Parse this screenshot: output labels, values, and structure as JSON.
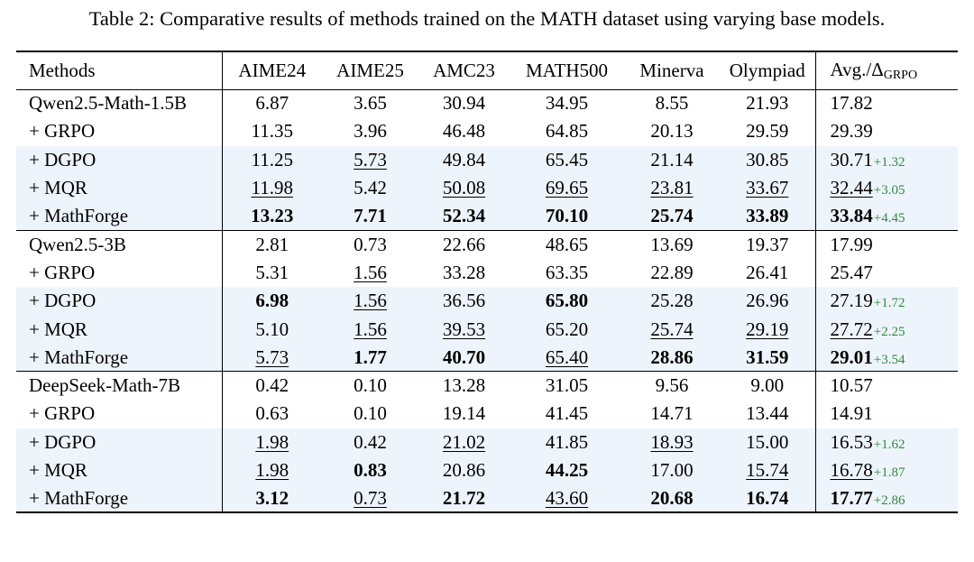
{
  "caption": "Table 2: Comparative results of methods trained on the MATH dataset using varying base models.",
  "header": {
    "methods": "Methods",
    "columns": [
      "AIME24",
      "AIME25",
      "AMC23",
      "MATH500",
      "Minerva",
      "Olympiad"
    ],
    "avg_prefix": "Avg./Δ",
    "avg_sub": "GRPO"
  },
  "colors": {
    "shade": "#eef4fb",
    "delta": "#2e8b3e"
  },
  "groups": [
    {
      "rows": [
        {
          "method": "Qwen2.5-Math-1.5B",
          "shaded": false,
          "values": [
            {
              "v": "6.87"
            },
            {
              "v": "3.65"
            },
            {
              "v": "30.94"
            },
            {
              "v": "34.95"
            },
            {
              "v": "8.55"
            },
            {
              "v": "21.93"
            }
          ],
          "avg": {
            "v": "17.82"
          },
          "delta": ""
        },
        {
          "method": "+ GRPO",
          "shaded": false,
          "values": [
            {
              "v": "11.35"
            },
            {
              "v": "3.96"
            },
            {
              "v": "46.48"
            },
            {
              "v": "64.85"
            },
            {
              "v": "20.13"
            },
            {
              "v": "29.59"
            }
          ],
          "avg": {
            "v": "29.39"
          },
          "delta": ""
        },
        {
          "method": "+ DGPO",
          "shaded": true,
          "values": [
            {
              "v": "11.25"
            },
            {
              "v": "5.73",
              "u": true
            },
            {
              "v": "49.84"
            },
            {
              "v": "65.45"
            },
            {
              "v": "21.14"
            },
            {
              "v": "30.85"
            }
          ],
          "avg": {
            "v": "30.71"
          },
          "delta": "+1.32"
        },
        {
          "method": "+ MQR",
          "shaded": true,
          "values": [
            {
              "v": "11.98",
              "u": true
            },
            {
              "v": "5.42"
            },
            {
              "v": "50.08",
              "u": true
            },
            {
              "v": "69.65",
              "u": true
            },
            {
              "v": "23.81",
              "u": true
            },
            {
              "v": "33.67",
              "u": true
            }
          ],
          "avg": {
            "v": "32.44",
            "u": true
          },
          "delta": "+3.05"
        },
        {
          "method": "+ MathForge",
          "shaded": true,
          "values": [
            {
              "v": "13.23",
              "b": true
            },
            {
              "v": "7.71",
              "b": true
            },
            {
              "v": "52.34",
              "b": true
            },
            {
              "v": "70.10",
              "b": true
            },
            {
              "v": "25.74",
              "b": true
            },
            {
              "v": "33.89",
              "b": true
            }
          ],
          "avg": {
            "v": "33.84",
            "b": true
          },
          "delta": "+4.45"
        }
      ]
    },
    {
      "rows": [
        {
          "method": "Qwen2.5-3B",
          "shaded": false,
          "values": [
            {
              "v": "2.81"
            },
            {
              "v": "0.73"
            },
            {
              "v": "22.66"
            },
            {
              "v": "48.65"
            },
            {
              "v": "13.69"
            },
            {
              "v": "19.37"
            }
          ],
          "avg": {
            "v": "17.99"
          },
          "delta": ""
        },
        {
          "method": "+ GRPO",
          "shaded": false,
          "values": [
            {
              "v": "5.31"
            },
            {
              "v": "1.56",
              "u": true
            },
            {
              "v": "33.28"
            },
            {
              "v": "63.35"
            },
            {
              "v": "22.89"
            },
            {
              "v": "26.41"
            }
          ],
          "avg": {
            "v": "25.47"
          },
          "delta": ""
        },
        {
          "method": "+ DGPO",
          "shaded": true,
          "values": [
            {
              "v": "6.98",
              "b": true
            },
            {
              "v": "1.56",
              "u": true
            },
            {
              "v": "36.56"
            },
            {
              "v": "65.80",
              "b": true
            },
            {
              "v": "25.28"
            },
            {
              "v": "26.96"
            }
          ],
          "avg": {
            "v": "27.19"
          },
          "delta": "+1.72"
        },
        {
          "method": "+ MQR",
          "shaded": true,
          "values": [
            {
              "v": "5.10"
            },
            {
              "v": "1.56",
              "u": true
            },
            {
              "v": "39.53",
              "u": true
            },
            {
              "v": "65.20"
            },
            {
              "v": "25.74",
              "u": true
            },
            {
              "v": "29.19",
              "u": true
            }
          ],
          "avg": {
            "v": "27.72",
            "u": true
          },
          "delta": "+2.25"
        },
        {
          "method": "+ MathForge",
          "shaded": true,
          "values": [
            {
              "v": "5.73",
              "u": true
            },
            {
              "v": "1.77",
              "b": true
            },
            {
              "v": "40.70",
              "b": true
            },
            {
              "v": "65.40",
              "u": true
            },
            {
              "v": "28.86",
              "b": true
            },
            {
              "v": "31.59",
              "b": true
            }
          ],
          "avg": {
            "v": "29.01",
            "b": true
          },
          "delta": "+3.54"
        }
      ]
    },
    {
      "rows": [
        {
          "method": "DeepSeek-Math-7B",
          "shaded": false,
          "values": [
            {
              "v": "0.42"
            },
            {
              "v": "0.10"
            },
            {
              "v": "13.28"
            },
            {
              "v": "31.05"
            },
            {
              "v": "9.56"
            },
            {
              "v": "9.00"
            }
          ],
          "avg": {
            "v": "10.57"
          },
          "delta": ""
        },
        {
          "method": "+ GRPO",
          "shaded": false,
          "values": [
            {
              "v": "0.63"
            },
            {
              "v": "0.10"
            },
            {
              "v": "19.14"
            },
            {
              "v": "41.45"
            },
            {
              "v": "14.71"
            },
            {
              "v": "13.44"
            }
          ],
          "avg": {
            "v": "14.91"
          },
          "delta": ""
        },
        {
          "method": "+ DGPO",
          "shaded": true,
          "values": [
            {
              "v": "1.98",
              "u": true
            },
            {
              "v": "0.42"
            },
            {
              "v": "21.02",
              "u": true
            },
            {
              "v": "41.85"
            },
            {
              "v": "18.93",
              "u": true
            },
            {
              "v": "15.00"
            }
          ],
          "avg": {
            "v": "16.53"
          },
          "delta": "+1.62"
        },
        {
          "method": "+ MQR",
          "shaded": true,
          "values": [
            {
              "v": "1.98",
              "u": true
            },
            {
              "v": "0.83",
              "b": true
            },
            {
              "v": "20.86"
            },
            {
              "v": "44.25",
              "b": true
            },
            {
              "v": "17.00"
            },
            {
              "v": "15.74",
              "u": true
            }
          ],
          "avg": {
            "v": "16.78",
            "u": true
          },
          "delta": "+1.87"
        },
        {
          "method": "+ MathForge",
          "shaded": true,
          "values": [
            {
              "v": "3.12",
              "b": true
            },
            {
              "v": "0.73",
              "u": true
            },
            {
              "v": "21.72",
              "b": true
            },
            {
              "v": "43.60",
              "u": true
            },
            {
              "v": "20.68",
              "b": true
            },
            {
              "v": "16.74",
              "b": true
            }
          ],
          "avg": {
            "v": "17.77",
            "b": true
          },
          "delta": "+2.86"
        }
      ]
    }
  ]
}
